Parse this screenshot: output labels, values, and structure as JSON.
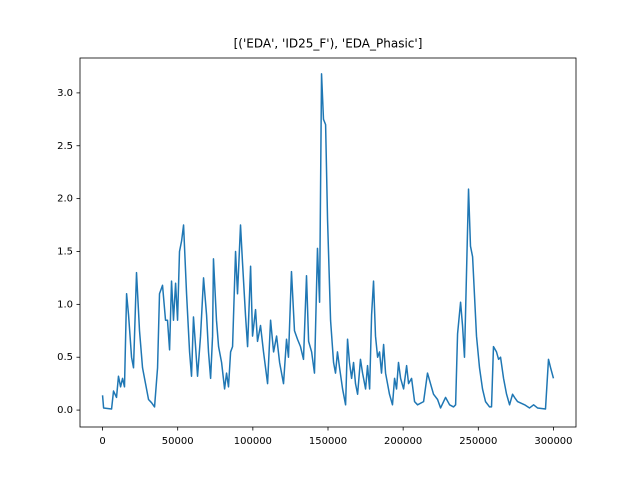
{
  "chart_data": {
    "type": "line",
    "title": "[('EDA', 'ID25_F'), 'EDA_Phasic']",
    "x": [
      0,
      700,
      6000,
      7300,
      9300,
      10600,
      12000,
      13300,
      14600,
      16000,
      17300,
      19300,
      20600,
      22600,
      24600,
      26600,
      28600,
      30600,
      32600,
      34600,
      36600,
      37900,
      39900,
      41900,
      43200,
      44600,
      45900,
      47200,
      48600,
      49900,
      51200,
      52600,
      53900,
      55900,
      57900,
      59200,
      60500,
      61900,
      63200,
      65200,
      67200,
      69200,
      70500,
      71900,
      73200,
      73800,
      75800,
      77200,
      79200,
      81200,
      82500,
      83800,
      85200,
      86500,
      88500,
      89800,
      91800,
      93100,
      95100,
      96500,
      98500,
      99800,
      101800,
      103100,
      105100,
      107100,
      109800,
      111800,
      113800,
      115800,
      117800,
      120400,
      122400,
      123700,
      125700,
      127700,
      129700,
      131700,
      133700,
      135700,
      137100,
      139100,
      141000,
      143000,
      144400,
      145700,
      147000,
      148400,
      149700,
      151700,
      153700,
      155000,
      156300,
      157700,
      159700,
      161700,
      163000,
      164300,
      165700,
      167000,
      168300,
      169700,
      171600,
      173000,
      175000,
      176300,
      177700,
      179000,
      180300,
      181600,
      183000,
      184300,
      185600,
      187000,
      188300,
      190900,
      192900,
      194300,
      195600,
      196900,
      198300,
      200300,
      202300,
      203600,
      205600,
      207600,
      209600,
      213600,
      216200,
      218200,
      220200,
      222900,
      224900,
      228200,
      230900,
      233500,
      234900,
      236200,
      238200,
      239500,
      240800,
      243500,
      244800,
      246200,
      248800,
      250800,
      252800,
      254800,
      257500,
      258800,
      260100,
      262100,
      263500,
      264800,
      266800,
      268800,
      270800,
      272800,
      274100,
      276100,
      280800,
      284100,
      286800,
      289400,
      294700,
      296700,
      298100,
      300000
    ],
    "series": [
      {
        "color": "#1f77b4",
        "values": [
          0.14,
          0.02,
          0.01,
          0.18,
          0.12,
          0.32,
          0.22,
          0.3,
          0.22,
          1.1,
          0.9,
          0.5,
          0.4,
          1.3,
          0.75,
          0.4,
          0.25,
          0.1,
          0.07,
          0.03,
          0.4,
          1.1,
          1.18,
          0.85,
          0.85,
          0.57,
          1.22,
          0.85,
          1.2,
          0.85,
          1.5,
          1.6,
          1.75,
          1.1,
          0.55,
          0.32,
          0.88,
          0.6,
          0.32,
          0.7,
          1.25,
          0.9,
          0.55,
          0.3,
          0.7,
          1.43,
          0.85,
          0.6,
          0.45,
          0.2,
          0.35,
          0.22,
          0.55,
          0.6,
          1.5,
          1.1,
          1.75,
          1.4,
          0.9,
          0.6,
          1.36,
          0.7,
          0.95,
          0.65,
          0.8,
          0.55,
          0.25,
          0.85,
          0.55,
          0.7,
          0.45,
          0.25,
          0.67,
          0.5,
          1.31,
          0.75,
          0.67,
          0.6,
          0.48,
          1.27,
          0.65,
          0.55,
          0.35,
          1.53,
          1.02,
          3.18,
          2.75,
          2.7,
          1.8,
          0.85,
          0.45,
          0.35,
          0.55,
          0.4,
          0.2,
          0.05,
          0.67,
          0.45,
          0.3,
          0.45,
          0.25,
          0.15,
          0.48,
          0.35,
          0.2,
          0.42,
          0.2,
          0.9,
          1.22,
          0.7,
          0.5,
          0.55,
          0.35,
          0.62,
          0.35,
          0.15,
          0.05,
          0.3,
          0.2,
          0.45,
          0.3,
          0.2,
          0.42,
          0.25,
          0.3,
          0.08,
          0.05,
          0.08,
          0.35,
          0.25,
          0.15,
          0.1,
          0.02,
          0.12,
          0.05,
          0.03,
          0.05,
          0.72,
          1.02,
          0.8,
          0.5,
          2.09,
          1.55,
          1.45,
          0.7,
          0.4,
          0.2,
          0.08,
          0.03,
          0.03,
          0.6,
          0.55,
          0.48,
          0.5,
          0.3,
          0.15,
          0.05,
          0.15,
          0.12,
          0.08,
          0.05,
          0.02,
          0.05,
          0.02,
          0.01,
          0.48,
          0.4,
          0.3
        ]
      }
    ],
    "xlim": [
      -15000,
      315000
    ],
    "ylim": [
      -0.16,
      3.33
    ],
    "xticks": [
      0,
      50000,
      100000,
      150000,
      200000,
      250000,
      300000
    ],
    "yticks": [
      {
        "value": 0,
        "label": "0.0"
      },
      0.5,
      {
        "value": 1,
        "label": "1.0"
      },
      1.5,
      {
        "value": 2,
        "label": "2.0"
      },
      2.5,
      {
        "value": 3,
        "label": "3.0"
      }
    ],
    "grid": false
  }
}
